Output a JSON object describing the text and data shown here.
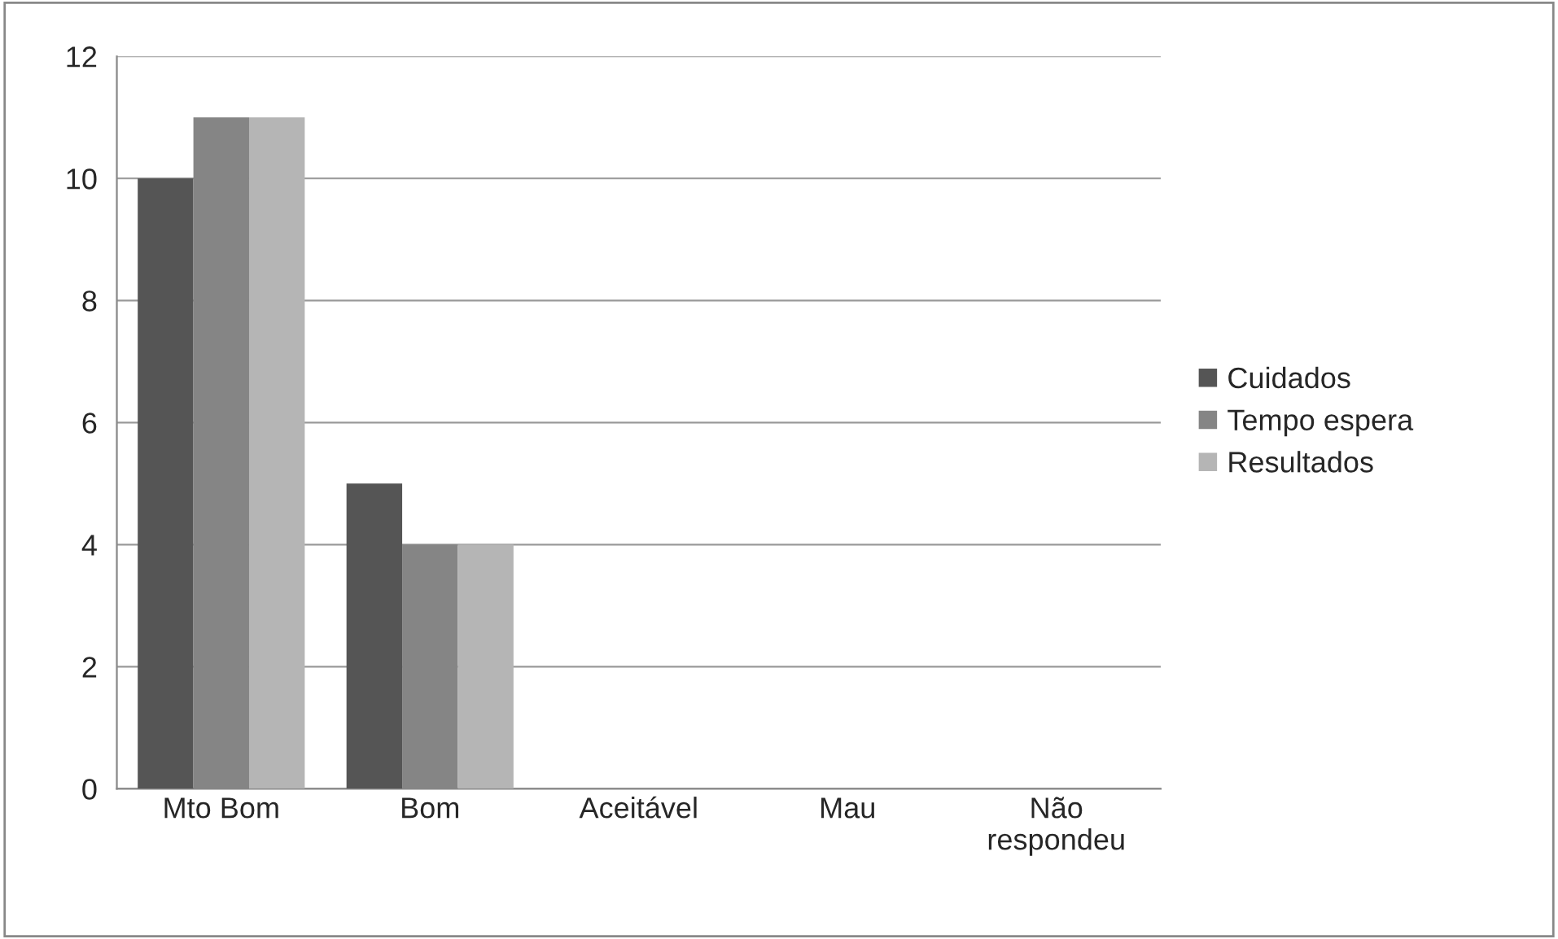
{
  "chart_data": {
    "type": "bar",
    "categories": [
      "Mto Bom",
      "Bom",
      "Aceitável",
      "Mau",
      "Não\nrespondeu"
    ],
    "series": [
      {
        "name": "Cuidados",
        "color": "#555555",
        "values": [
          10,
          5,
          0,
          0,
          0
        ]
      },
      {
        "name": "Tempo espera",
        "color": "#858585",
        "values": [
          11,
          4,
          0,
          0,
          0
        ]
      },
      {
        "name": "Resultados",
        "color": "#b5b5b5",
        "values": [
          11,
          4,
          0,
          0,
          0
        ]
      }
    ],
    "ylim": [
      0,
      12
    ],
    "yticks": [
      0,
      2,
      4,
      6,
      8,
      10,
      12
    ],
    "grid": "y",
    "legend": "right"
  }
}
